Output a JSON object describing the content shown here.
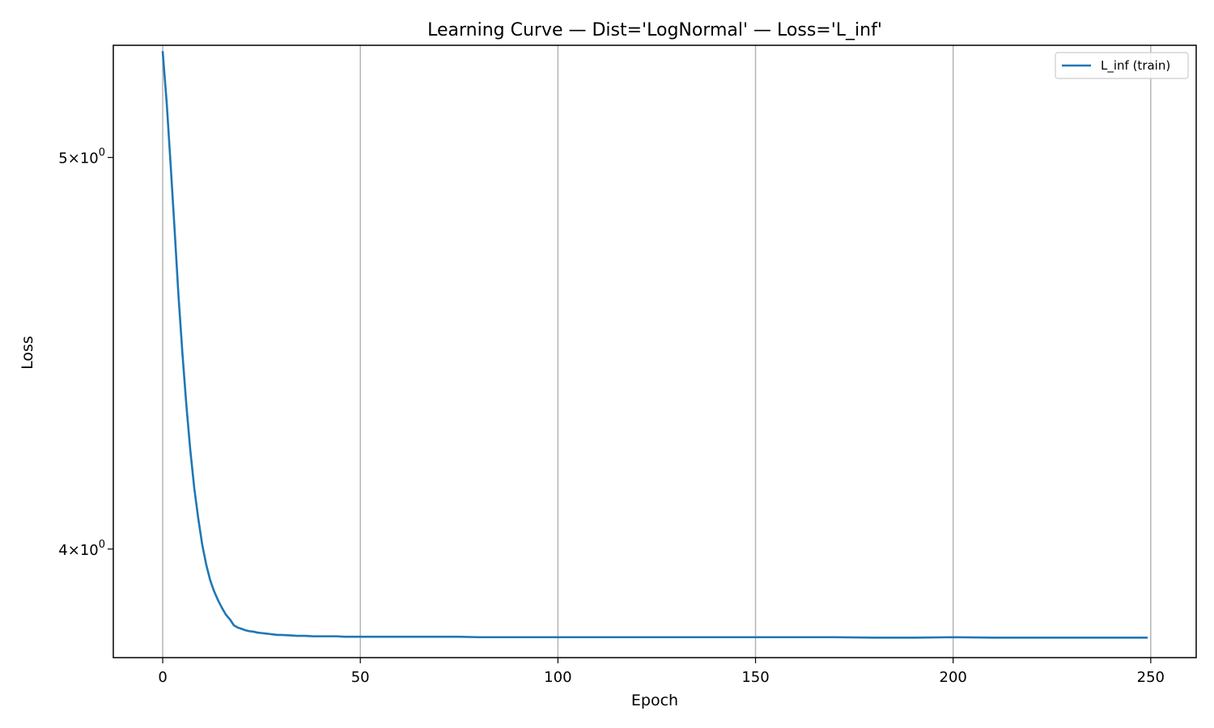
{
  "chart_data": {
    "type": "line",
    "title": "Learning Curve — Dist='LogNormal' — Loss='L_inf'",
    "xlabel": "Epoch",
    "ylabel": "Loss",
    "xlim": [
      -12.5,
      261.5
    ],
    "ylim": [
      3.76,
      5.33
    ],
    "yscale": "log",
    "grid": "x-axis vertical lines",
    "legend_location": "upper right",
    "x_ticks": [
      {
        "value": 0,
        "label": "0"
      },
      {
        "value": 50,
        "label": "50"
      },
      {
        "value": 100,
        "label": "100"
      },
      {
        "value": 150,
        "label": "150"
      },
      {
        "value": 200,
        "label": "200"
      },
      {
        "value": 250,
        "label": "250"
      }
    ],
    "y_ticks": [
      {
        "value": 4,
        "mantissa": "4",
        "base": "10",
        "exponent": "0"
      },
      {
        "value": 5,
        "mantissa": "5",
        "base": "10",
        "exponent": "0"
      }
    ],
    "series": [
      {
        "name": "L_inf (train)",
        "color": "#1f77b4",
        "x": [
          0,
          1,
          2,
          3,
          4,
          5,
          6,
          7,
          8,
          9,
          10,
          11,
          12,
          13,
          14,
          15,
          16,
          17,
          18,
          19,
          20,
          21,
          22,
          23,
          24,
          25,
          26,
          27,
          28,
          29,
          30,
          32,
          34,
          36,
          38,
          40,
          42,
          44,
          46,
          48,
          50,
          55,
          60,
          65,
          70,
          75,
          80,
          85,
          90,
          95,
          100,
          110,
          120,
          130,
          140,
          150,
          160,
          170,
          180,
          190,
          200,
          210,
          220,
          230,
          240,
          249
        ],
        "y": [
          5.31,
          5.16,
          4.98,
          4.8,
          4.62,
          4.47,
          4.34,
          4.23,
          4.14,
          4.07,
          4.01,
          3.965,
          3.93,
          3.905,
          3.885,
          3.868,
          3.853,
          3.843,
          3.83,
          3.825,
          3.822,
          3.819,
          3.817,
          3.816,
          3.814,
          3.813,
          3.812,
          3.811,
          3.81,
          3.809,
          3.809,
          3.808,
          3.807,
          3.807,
          3.806,
          3.806,
          3.806,
          3.806,
          3.805,
          3.805,
          3.805,
          3.805,
          3.805,
          3.805,
          3.805,
          3.805,
          3.804,
          3.804,
          3.804,
          3.804,
          3.804,
          3.804,
          3.804,
          3.804,
          3.804,
          3.804,
          3.804,
          3.804,
          3.803,
          3.803,
          3.804,
          3.803,
          3.803,
          3.803,
          3.803,
          3.803
        ]
      }
    ]
  }
}
